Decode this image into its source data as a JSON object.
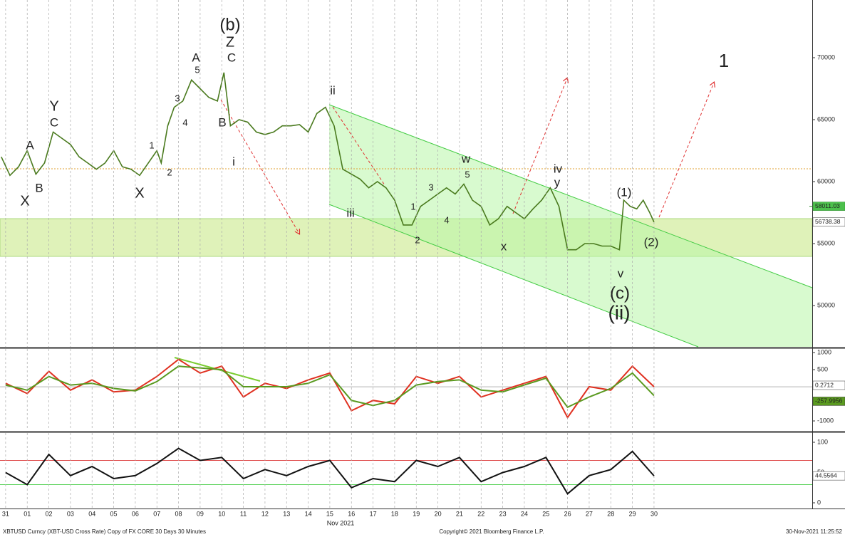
{
  "chart_data": [
    {
      "type": "line",
      "xlim": [
        -0.26,
        37.32
      ],
      "ylim": [
        46667,
        74655
      ],
      "yticks": [
        50000,
        55000,
        60000,
        65000,
        70000
      ],
      "x": [
        -0.2,
        0.2,
        0.6,
        1.0,
        1.4,
        1.8,
        2.2,
        2.6,
        3.0,
        3.4,
        3.8,
        4.2,
        4.6,
        5.0,
        5.4,
        5.8,
        6.2,
        6.6,
        7.0,
        7.2,
        7.5,
        7.8,
        8.2,
        8.6,
        9.0,
        9.4,
        9.8,
        10.1,
        10.4,
        10.8,
        11.2,
        11.6,
        12.0,
        12.4,
        12.8,
        13.2,
        13.6,
        14.0,
        14.4,
        14.8,
        15.2,
        15.6,
        16.0,
        16.4,
        16.8,
        17.2,
        17.6,
        18.0,
        18.4,
        18.8,
        19.2,
        19.6,
        20.0,
        20.4,
        20.8,
        21.2,
        21.6,
        22.0,
        22.4,
        22.8,
        23.2,
        23.6,
        24.0,
        24.4,
        24.8,
        25.2,
        25.6,
        26.0,
        26.4,
        26.8,
        27.2,
        27.6,
        28.0,
        28.4,
        28.6,
        28.9,
        29.2,
        29.5,
        29.8,
        30.0
      ],
      "series": [
        {
          "color": "#4a7a1e",
          "values": [
            62000,
            60500,
            61200,
            62500,
            60600,
            61500,
            64000,
            63500,
            63000,
            62000,
            61500,
            61000,
            61500,
            62500,
            61200,
            61000,
            60500,
            61500,
            62500,
            61500,
            64500,
            66000,
            66500,
            68200,
            67500,
            66800,
            66500,
            68800,
            64500,
            65000,
            64800,
            64000,
            63800,
            64000,
            64500,
            64500,
            64600,
            64000,
            65500,
            66000,
            64500,
            61000,
            60600,
            60200,
            59500,
            60000,
            59500,
            58500,
            56500,
            56500,
            58000,
            58500,
            59000,
            59500,
            59000,
            59800,
            58500,
            58000,
            56500,
            57000,
            58000,
            57500,
            57000,
            57800,
            58500,
            59500,
            58000,
            54500,
            54500,
            55000,
            55000,
            54800,
            54800,
            54500,
            58500,
            58000,
            57800,
            58500,
            57500,
            56738.38
          ]
        }
      ],
      "reference_value": 58011.03
    },
    {
      "type": "line",
      "xlim": [
        -0.26,
        37.32
      ],
      "ylim": [
        -1270,
        1104
      ],
      "yticks": [
        -1000,
        -500,
        500,
        1000
      ],
      "x": [
        0,
        1,
        2,
        3,
        4,
        5,
        6,
        7,
        8,
        9,
        10,
        11,
        12,
        13,
        14,
        15,
        16,
        17,
        18,
        19,
        20,
        21,
        22,
        23,
        24,
        25,
        26,
        27,
        28,
        29,
        30
      ],
      "series": [
        {
          "color": "#e03020",
          "values": [
            100,
            -200,
            450,
            -100,
            200,
            -150,
            -100,
            300,
            800,
            400,
            600,
            -300,
            100,
            -50,
            200,
            400,
            -700,
            -400,
            -500,
            300,
            100,
            300,
            -300,
            -100,
            100,
            300,
            -900,
            0,
            -100,
            600,
            0.2712
          ]
        },
        {
          "color": "#5a9a20",
          "values": [
            50,
            -100,
            300,
            50,
            100,
            -50,
            -120,
            150,
            600,
            550,
            500,
            0,
            0,
            0,
            100,
            350,
            -400,
            -550,
            -400,
            50,
            150,
            200,
            -100,
            -150,
            50,
            250,
            -600,
            -300,
            -50,
            400,
            -257.9956
          ]
        }
      ]
    },
    {
      "type": "line",
      "xlim": [
        -0.26,
        37.32
      ],
      "ylim": [
        -9.4,
        115.3
      ],
      "yticks": [
        0,
        50,
        100
      ],
      "hlines": [
        {
          "value": 70,
          "color": "#e05050"
        },
        {
          "value": 30,
          "color": "#50d050"
        }
      ],
      "x": [
        0,
        1,
        2,
        3,
        4,
        5,
        6,
        7,
        8,
        9,
        10,
        11,
        12,
        13,
        14,
        15,
        16,
        17,
        18,
        19,
        20,
        21,
        22,
        23,
        24,
        25,
        26,
        27,
        28,
        29,
        30
      ],
      "series": [
        {
          "color": "#111111",
          "values": [
            50,
            30,
            80,
            45,
            60,
            40,
            45,
            65,
            90,
            70,
            75,
            40,
            55,
            45,
            60,
            70,
            25,
            40,
            35,
            70,
            60,
            75,
            35,
            50,
            60,
            75,
            15,
            45,
            55,
            85,
            44.5564
          ]
        }
      ],
      "xticks": [
        {
          "value": 0,
          "label": "31"
        },
        {
          "value": 1,
          "label": "01"
        },
        {
          "value": 2,
          "label": "02"
        },
        {
          "value": 3,
          "label": "03"
        },
        {
          "value": 4,
          "label": "04"
        },
        {
          "value": 5,
          "label": "05"
        },
        {
          "value": 6,
          "label": "06"
        },
        {
          "value": 7,
          "label": "07"
        },
        {
          "value": 8,
          "label": "08"
        },
        {
          "value": 9,
          "label": "09"
        },
        10,
        11,
        12,
        13,
        14,
        15,
        16,
        17,
        18,
        19,
        20,
        21,
        22,
        23,
        24,
        25,
        26,
        27,
        28,
        29,
        30
      ],
      "xlabel": "Nov 2021"
    }
  ],
  "annotations": [
    {
      "text": "X",
      "color": "#3a6fc4"
    },
    {
      "text": "A",
      "color": "#e02020"
    },
    {
      "text": "B",
      "color": "#e02020"
    },
    {
      "text": "Y",
      "color": "#3a6fc4"
    },
    {
      "text": "C",
      "color": "#e02020"
    },
    {
      "text": "X",
      "color": "#3a6fc4"
    },
    {
      "text": "1",
      "color": "#333"
    },
    {
      "text": "2",
      "color": "#333"
    },
    {
      "text": "3",
      "color": "#333"
    },
    {
      "text": "4",
      "color": "#333"
    },
    {
      "text": "A",
      "color": "#e02020"
    },
    {
      "text": "5",
      "color": "#333"
    },
    {
      "text": "(b)",
      "color": "#6a9a20"
    },
    {
      "text": "Z",
      "color": "#3a6fc4"
    },
    {
      "text": "C",
      "color": "#e02020"
    },
    {
      "text": "B",
      "color": "#e02020"
    },
    {
      "text": "i",
      "color": "#333"
    },
    {
      "text": "ii",
      "color": "#333"
    },
    {
      "text": "iii",
      "color": "#333"
    },
    {
      "text": "1",
      "color": "#e06030"
    },
    {
      "text": "2",
      "color": "#e06030"
    },
    {
      "text": "3",
      "color": "#e06030"
    },
    {
      "text": "4",
      "color": "#e06030"
    },
    {
      "text": "5",
      "color": "#e06030"
    },
    {
      "text": "w",
      "color": "#333"
    },
    {
      "text": "x",
      "color": "#333"
    },
    {
      "text": "iv",
      "color": "#333"
    },
    {
      "text": "y",
      "color": "#333"
    },
    {
      "text": "(1)",
      "color": "#40a8e0"
    },
    {
      "text": "(2)",
      "color": "#40a8e0"
    },
    {
      "text": "v",
      "color": "#333"
    },
    {
      "text": "(c)",
      "color": "#6a9a20"
    },
    {
      "text": "(ii)",
      "color": "#b040c0"
    },
    {
      "text": "1",
      "color": "#e02020"
    }
  ],
  "footer": {
    "left": "XBTUSD Curncy (XBT-USD Cross Rate) Copy of FX CORE 30 Days 30 Minutes",
    "center": "Copyright© 2021 Bloomberg Finance L.P.",
    "right": "30-Nov-2021 11:25:52"
  }
}
